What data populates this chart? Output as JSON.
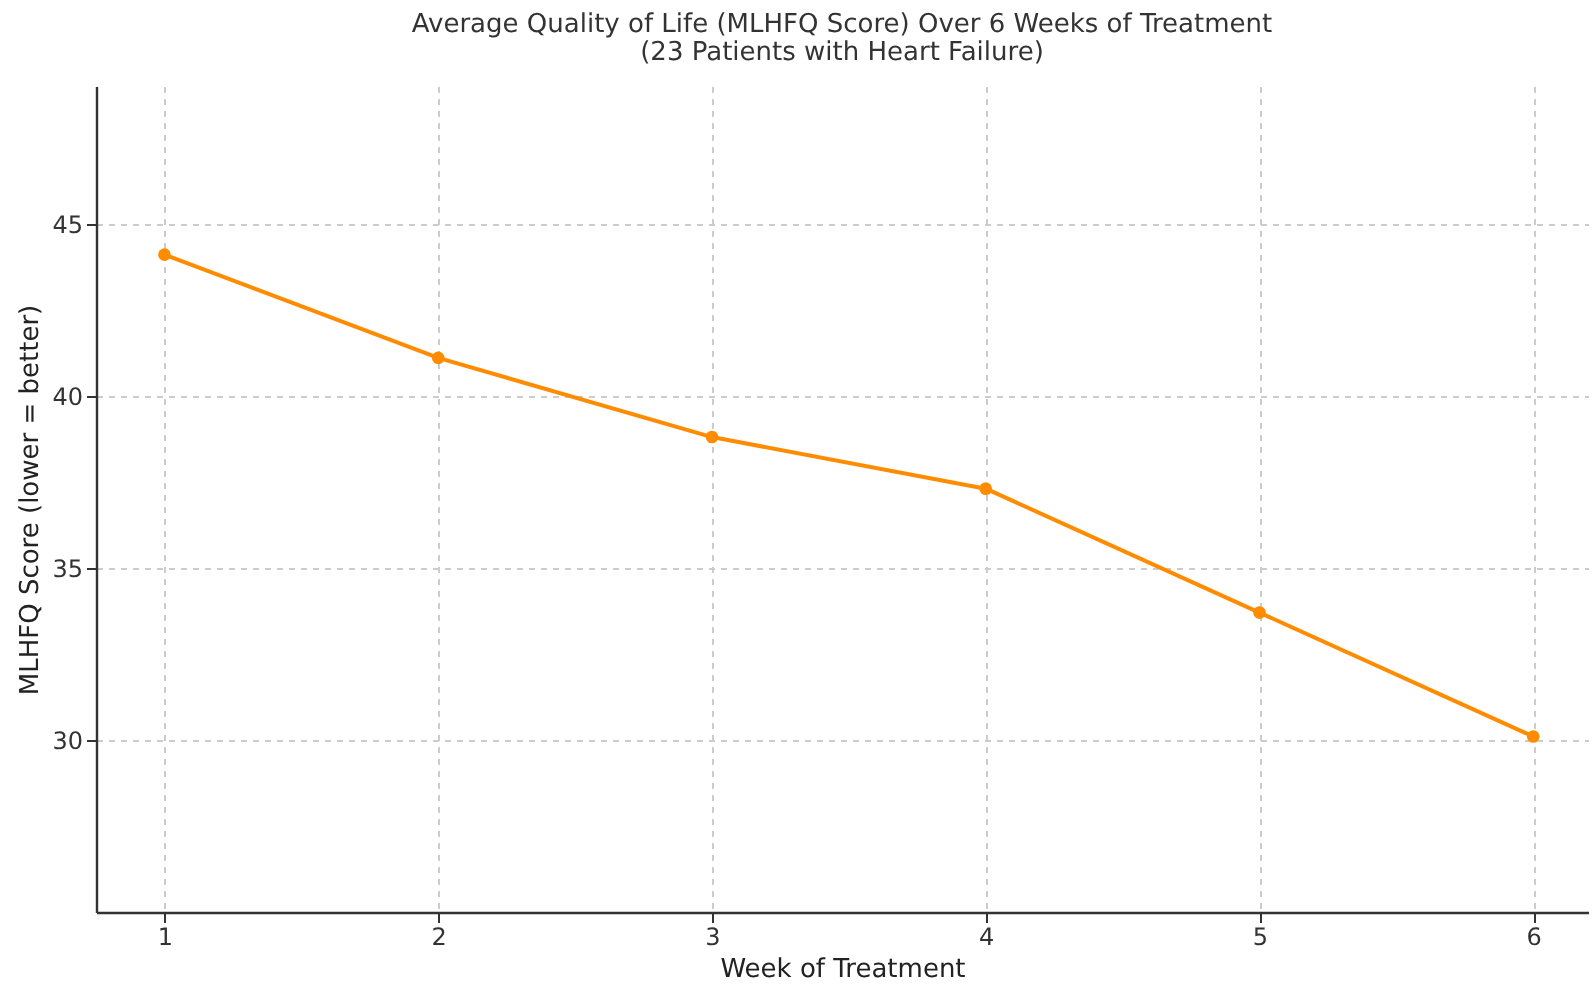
{
  "chart_data": {
    "type": "line",
    "title": "Average Quality of Life (MLHFQ Score) Over 6 Weeks of Treatment",
    "subtitle": "(23 Patients with Heart Failure)",
    "xlabel": "Week of Treatment",
    "ylabel": "MLHFQ Score (lower = better)",
    "x": [
      1,
      2,
      3,
      4,
      5,
      6
    ],
    "series": [
      {
        "color": "#ff8c00",
        "values": [
          44.1,
          41.1,
          38.8,
          37.3,
          33.7,
          30.1
        ]
      }
    ],
    "xlim": [
      0.75,
      6.2
    ],
    "xticks": [
      1,
      2,
      3,
      4,
      5,
      6
    ],
    "ylim": [
      25,
      49
    ],
    "yticks": [
      30,
      35,
      40,
      45
    ],
    "grid": true,
    "marker": "circle",
    "line_style": "solid"
  }
}
